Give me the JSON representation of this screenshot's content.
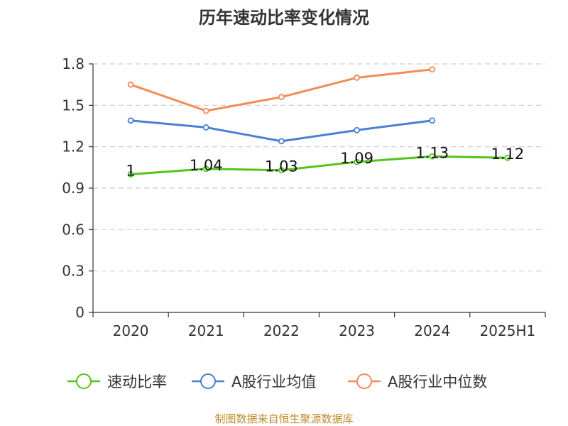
{
  "chart_data": {
    "type": "line",
    "title": "历年速动比率变化情况",
    "categories": [
      "2020",
      "2021",
      "2022",
      "2023",
      "2024",
      "2025H1"
    ],
    "ylim": [
      0,
      1.8
    ],
    "yticks": [
      "0",
      "0.3",
      "0.6",
      "0.9",
      "1.2",
      "1.5",
      "1.8"
    ],
    "grid": true,
    "legend_position": "bottom",
    "series": [
      {
        "name": "速动比率",
        "color": "#52c41a",
        "values": [
          1.0,
          1.04,
          1.03,
          1.09,
          1.13,
          1.12
        ],
        "labels": [
          "1",
          "1.04",
          "1.03",
          "1.09",
          "1.13",
          "1.12"
        ]
      },
      {
        "name": "A股行业均值",
        "color": "#4a7fd4",
        "values": [
          1.39,
          1.34,
          1.24,
          1.32,
          1.39,
          null
        ]
      },
      {
        "name": "A股行业中位数",
        "color": "#f28c55",
        "values": [
          1.65,
          1.46,
          1.56,
          1.7,
          1.76,
          null
        ]
      }
    ],
    "source": "制图数据来自恒生聚源数据库"
  }
}
